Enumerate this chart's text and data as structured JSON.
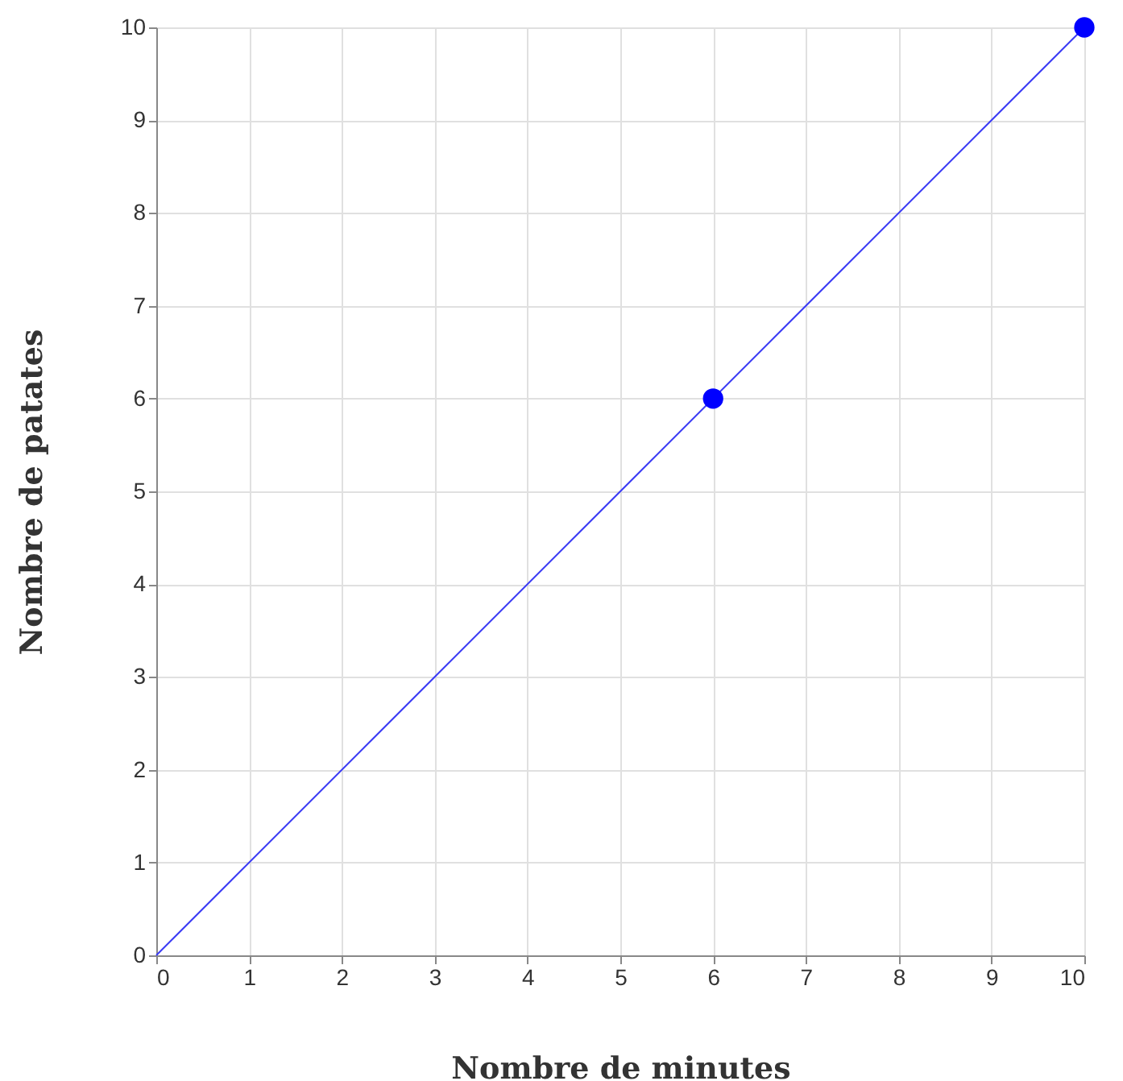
{
  "chart_data": {
    "type": "line",
    "xlabel": "Nombre de minutes",
    "ylabel": "Nombre de patates",
    "xlim": [
      0,
      10
    ],
    "ylim": [
      0,
      10
    ],
    "xticks": [
      0,
      1,
      2,
      3,
      4,
      5,
      6,
      7,
      8,
      9,
      10
    ],
    "yticks": [
      0,
      1,
      2,
      3,
      4,
      5,
      6,
      7,
      8,
      9,
      10
    ],
    "grid": true,
    "series": [
      {
        "color": "#3b3bf5",
        "marker": "none",
        "x": [
          0,
          10
        ],
        "values": [
          0,
          10
        ]
      },
      {
        "type": "scatter",
        "marker": "circle",
        "color": "#0000ff",
        "x": [
          6,
          10
        ],
        "values": [
          6,
          10
        ]
      }
    ]
  }
}
